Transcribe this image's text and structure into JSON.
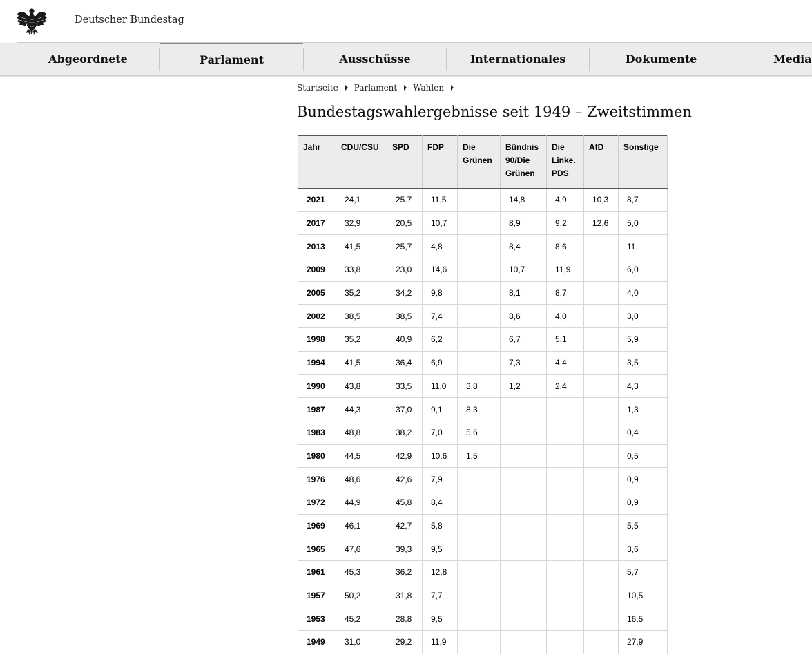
{
  "site": {
    "title": "Deutscher Bundestag",
    "logo_icon": "bundesadler-eagle-icon"
  },
  "nav": {
    "items": [
      {
        "label": "Abgeordnete",
        "active": false
      },
      {
        "label": "Parlament",
        "active": true
      },
      {
        "label": "Ausschüsse",
        "active": false
      },
      {
        "label": "Internationales",
        "active": false
      },
      {
        "label": "Dokumente",
        "active": false
      },
      {
        "label": "Mediat",
        "active": false
      }
    ],
    "accent_color": "#e8683c"
  },
  "breadcrumb": [
    "Startseite",
    "Parlament",
    "Wahlen"
  ],
  "page_title": "Bundestagswahlergebnisse seit 1949 – Zweitstimmen",
  "table": {
    "headers": [
      "Jahr",
      "CDU/CSU",
      "SPD",
      "FDP",
      "Die Grünen",
      "Bündnis 90/Die Grünen",
      "Die Linke. PDS",
      "AfD",
      "Sonstige"
    ],
    "header_lines": [
      [
        "Jahr"
      ],
      [
        "CDU/CSU"
      ],
      [
        "SPD"
      ],
      [
        "FDP"
      ],
      [
        "Die",
        "Grünen"
      ],
      [
        "Bündnis",
        "90/Die",
        "Grünen"
      ],
      [
        "Die",
        "Linke.",
        "PDS"
      ],
      [
        "AfD"
      ],
      [
        "Sonstige"
      ]
    ],
    "rows": [
      [
        "2021",
        "24,1",
        "25.7",
        "11,5",
        "",
        "14,8",
        "4,9",
        "10,3",
        "8,7"
      ],
      [
        "2017",
        "32,9",
        "20,5",
        "10,7",
        "",
        "8,9",
        "9,2",
        "12,6",
        "5,0"
      ],
      [
        "2013",
        "41,5",
        "25,7",
        "4,8",
        "",
        "8,4",
        "8,6",
        "",
        "11"
      ],
      [
        "2009",
        "33,8",
        "23,0",
        "14,6",
        "",
        "10,7",
        "11,9",
        "",
        "6,0"
      ],
      [
        "2005",
        "35,2",
        "34,2",
        "9,8",
        "",
        "8,1",
        "8,7",
        "",
        "4,0"
      ],
      [
        "2002",
        "38,5",
        "38,5",
        "7,4",
        "",
        "8,6",
        "4,0",
        "",
        "3,0"
      ],
      [
        "1998",
        "35,2",
        "40,9",
        "6,2",
        "",
        "6,7",
        "5,1",
        "",
        "5,9"
      ],
      [
        "1994",
        "41,5",
        "36,4",
        "6,9",
        "",
        "7,3",
        "4,4",
        "",
        "3,5"
      ],
      [
        "1990",
        "43,8",
        "33,5",
        "11,0",
        "3,8",
        "1,2",
        "2,4",
        "",
        "4,3"
      ],
      [
        "1987",
        "44,3",
        "37,0",
        "9,1",
        "8,3",
        "",
        "",
        "",
        "1,3"
      ],
      [
        "1983",
        "48,8",
        "38,2",
        "7,0",
        "5,6",
        "",
        "",
        "",
        "0,4"
      ],
      [
        "1980",
        "44,5",
        "42,9",
        "10,6",
        "1,5",
        "",
        "",
        "",
        "0,5"
      ],
      [
        "1976",
        "48,6",
        "42,6",
        "7,9",
        "",
        "",
        "",
        "",
        "0,9"
      ],
      [
        "1972",
        "44,9",
        "45,8",
        "8,4",
        "",
        "",
        "",
        "",
        "0,9"
      ],
      [
        "1969",
        "46,1",
        "42,7",
        "5,8",
        "",
        "",
        "",
        "",
        "5,5"
      ],
      [
        "1965",
        "47,6",
        "39,3",
        "9,5",
        "",
        "",
        "",
        "",
        "3,6"
      ],
      [
        "1961",
        "45,3",
        "36,2",
        "12,8",
        "",
        "",
        "",
        "",
        "5,7"
      ],
      [
        "1957",
        "50,2",
        "31,8",
        "7,7",
        "",
        "",
        "",
        "",
        "10,5"
      ],
      [
        "1953",
        "45,2",
        "28,8",
        "9,5",
        "",
        "",
        "",
        "",
        "16,5"
      ],
      [
        "1949",
        "31,0",
        "29,2",
        "11,9",
        "",
        "",
        "",
        "",
        "27,9"
      ]
    ]
  }
}
